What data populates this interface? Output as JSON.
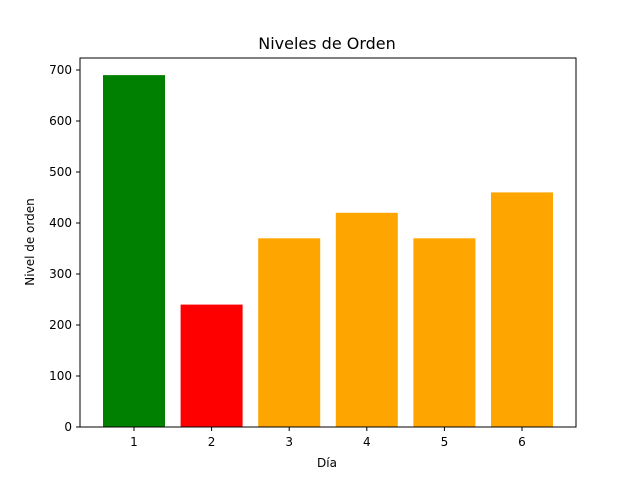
{
  "chart_data": {
    "type": "bar",
    "title": "Niveles de Orden",
    "xlabel": "Día",
    "ylabel": "Nivel de orden",
    "categories": [
      "1",
      "2",
      "3",
      "4",
      "5",
      "6"
    ],
    "values": [
      690,
      240,
      370,
      420,
      370,
      460
    ],
    "colors": [
      "#008000",
      "#ff0000",
      "#ffa500",
      "#ffa500",
      "#ffa500",
      "#ffa500"
    ],
    "ylim": [
      0,
      700
    ],
    "yticks": [
      0,
      100,
      200,
      300,
      400,
      500,
      600,
      700
    ],
    "grid": false,
    "legend": false
  }
}
